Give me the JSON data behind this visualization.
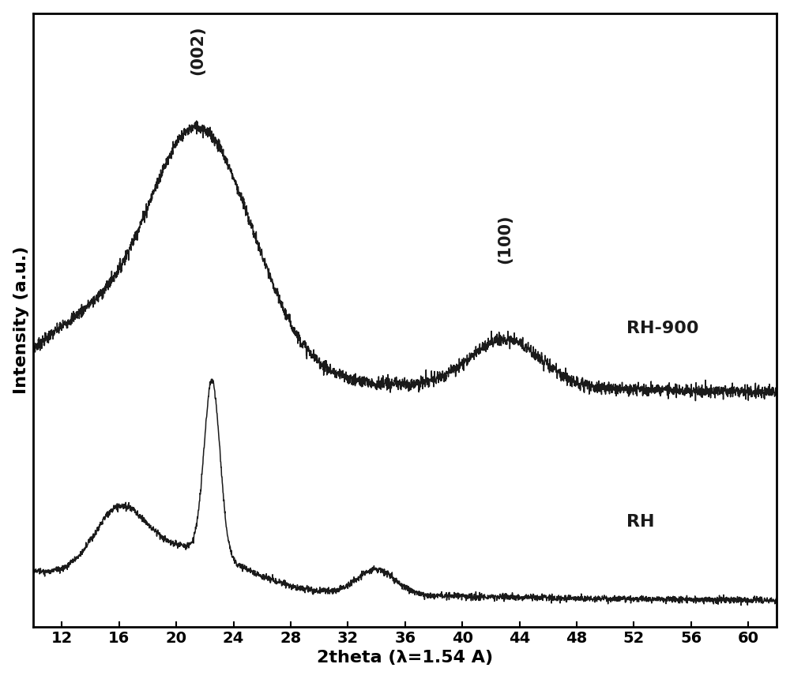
{
  "xlabel": "2theta (λ=1.54 A)",
  "ylabel": "Intensity (a.u.)",
  "xlim": [
    10,
    62
  ],
  "xticks": [
    12,
    16,
    20,
    24,
    28,
    32,
    36,
    40,
    44,
    48,
    52,
    56,
    60
  ],
  "label_rh900": "RH-900",
  "label_rh": "RH",
  "annotation_002": "(002)",
  "annotation_100": "(100)",
  "line_color": "#1a1a1a",
  "background_color": "#ffffff",
  "label_fontsize": 16,
  "tick_fontsize": 14,
  "ann_fontsize": 15
}
